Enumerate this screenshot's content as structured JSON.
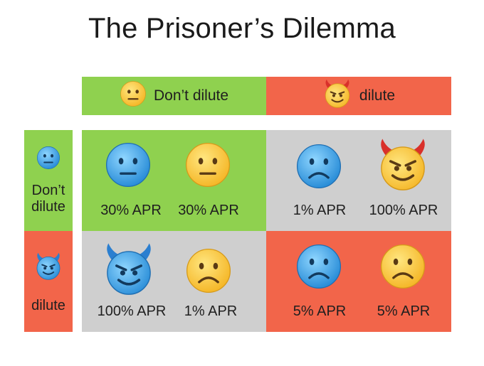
{
  "title": "The Prisoner’s Dilemma",
  "columns": [
    {
      "label": "Don’t dilute",
      "icon": "neutral-face-icon",
      "color": "#8fd14f"
    },
    {
      "label": "dilute",
      "icon": "smiling-devil-icon",
      "color": "#f2654a"
    }
  ],
  "rows": [
    {
      "label_line1": "Don’t",
      "label_line2": "dilute",
      "icon": "blue-neutral-face-icon",
      "color": "#8fd14f"
    },
    {
      "label": "dilute",
      "icon": "blue-devil-icon",
      "color": "#f2654a"
    }
  ],
  "cells": [
    {
      "row_player": "30% APR",
      "col_player": "30% APR"
    },
    {
      "row_player": "1% APR",
      "col_player": "100% APR"
    },
    {
      "row_player": "100% APR",
      "col_player": "1% APR"
    },
    {
      "row_player": "5% APR",
      "col_player": "5% APR"
    }
  ]
}
